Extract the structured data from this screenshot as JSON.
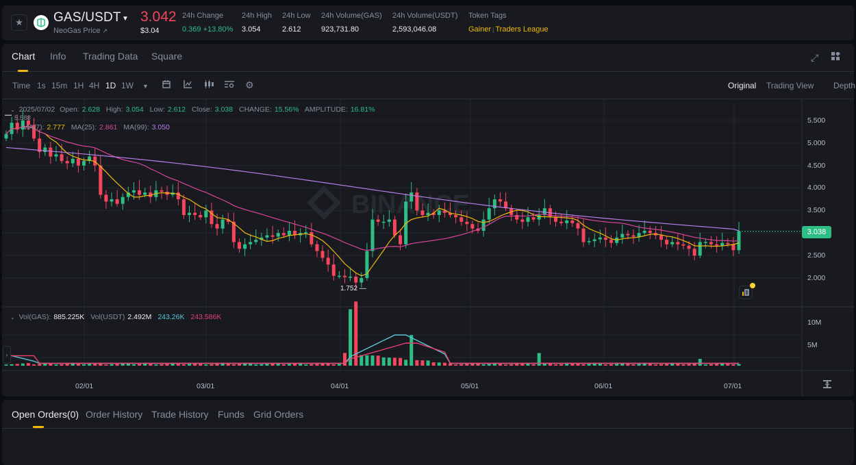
{
  "header": {
    "pair": "GAS/USDT",
    "token_name": "NeoGas Price",
    "token_link_icon": "external-link-icon",
    "last_price": "3.042",
    "last_price_usd": "$3.04",
    "stats": [
      {
        "label": "24h Change",
        "value": "0.369 +13.80%",
        "color": "#2ebd85"
      },
      {
        "label": "24h High",
        "value": "3.054"
      },
      {
        "label": "24h Low",
        "value": "2.612"
      },
      {
        "label": "24h Volume(GAS)",
        "value": "923,731.80"
      },
      {
        "label": "24h Volume(USDT)",
        "value": "2,593,046.08"
      }
    ],
    "token_tags_label": "Token Tags",
    "token_tags": [
      "Gainer",
      "Traders League"
    ]
  },
  "chart_tabs": {
    "items": [
      "Chart",
      "Info",
      "Trading Data",
      "Square"
    ],
    "active": "Chart"
  },
  "toolbar": {
    "intervals": [
      "Time",
      "1s",
      "15m",
      "1H",
      "4H",
      "1D",
      "1W"
    ],
    "active_interval": "1D",
    "icons": [
      "calendar-icon",
      "indicator-icon",
      "candle-type-icon",
      "layout-settings-icon",
      "gear-icon"
    ],
    "views": [
      "Original",
      "Trading View",
      "Depth"
    ],
    "active_view": "Original"
  },
  "ohlc_legend": {
    "date": "2025/07/02",
    "open_label": "Open:",
    "open": "2.628",
    "high_label": "High:",
    "high": "3.054",
    "low_label": "Low:",
    "low": "2.612",
    "close_label": "Close:",
    "close": "3.038",
    "change_label": "CHANGE:",
    "change": "15.56%",
    "amplitude_label": "AMPLITUDE:",
    "amplitude": "16.81%"
  },
  "ma_legend": {
    "ma7_label": "MA(7):",
    "ma7": "2.777",
    "ma25_label": "MA(25):",
    "ma25": "2.861",
    "ma99_label": "MA(99):",
    "ma99": "3.050"
  },
  "vol_legend": {
    "gas_label": "Vol(GAS):",
    "gas": "885.225K",
    "usdt_label": "Vol(USDT)",
    "usdt": "2.492M",
    "ma1": "243.26K",
    "ma2": "243.586K"
  },
  "current_price_tag": "3.038",
  "max_label": "5.588",
  "min_label": "1.752",
  "watermark": "BINANCE",
  "colors": {
    "up": "#2ebd85",
    "down": "#f6465d",
    "ma7": "#f0b90b",
    "ma25": "#d9449b",
    "ma99": "#b77ee8",
    "vol_ma1": "#5bc5d9",
    "vol_ma2": "#e83f6f",
    "accent": "#f0b90b"
  },
  "chart_data": {
    "type": "candlestick",
    "title": "GAS/USDT 1D",
    "y_ticks": [
      "5.500",
      "5.000",
      "4.500",
      "4.000",
      "3.500",
      "2.500",
      "2.000"
    ],
    "y_tick_values": [
      5.5,
      5.0,
      4.5,
      4.0,
      3.5,
      2.5,
      2.0
    ],
    "x_ticks": [
      "02/01",
      "03/01",
      "04/01",
      "05/01",
      "06/01",
      "07/01"
    ],
    "vol_ticks": [
      "10M",
      "5M"
    ],
    "ylim": [
      1.5,
      5.75
    ],
    "close_path": [
      5.2,
      5.45,
      5.3,
      5.5,
      5.4,
      5.1,
      4.8,
      4.9,
      4.7,
      4.75,
      4.6,
      4.55,
      4.65,
      4.5,
      4.6,
      4.7,
      4.5,
      3.85,
      3.7,
      3.75,
      3.65,
      3.8,
      3.9,
      3.95,
      3.85,
      3.9,
      3.8,
      3.95,
      3.92,
      3.85,
      3.9,
      3.75,
      3.4,
      3.45,
      3.4,
      3.35,
      3.5,
      3.2,
      3.1,
      3.3,
      3.25,
      2.8,
      2.65,
      2.75,
      2.8,
      2.85,
      2.9,
      2.95,
      2.92,
      3.0,
      2.95,
      3.05,
      2.95,
      3.0,
      3.02,
      2.75,
      2.6,
      2.45,
      2.3,
      2.05,
      2.05,
      2.02,
      2.03,
      1.9,
      2.0,
      2.6,
      3.3,
      3.25,
      3.25,
      3.3,
      2.95,
      2.75,
      3.7,
      3.9,
      3.5,
      3.4,
      3.45,
      3.4,
      3.5,
      3.45,
      3.4,
      3.35,
      3.25,
      3.2,
      3.1,
      3.05,
      3.3,
      3.55,
      3.75,
      3.7,
      3.55,
      3.4,
      3.3,
      3.25,
      3.35,
      3.3,
      3.4,
      3.55,
      3.35,
      3.25,
      3.22,
      3.28,
      3.22,
      3.1,
      2.8,
      2.82,
      2.86,
      2.9,
      2.85,
      2.78,
      2.9,
      2.98,
      2.95,
      2.92,
      3.0,
      3.05,
      3.0,
      2.95,
      2.85,
      2.75,
      2.8,
      2.75,
      2.72,
      2.65,
      2.5,
      2.8,
      2.8,
      2.75,
      2.72,
      2.78,
      2.75,
      2.62,
      3.04
    ],
    "ma7_last": 2.777,
    "ma25_last": 2.861,
    "ma99_last": 3.05,
    "high_marker": 5.588,
    "low_marker": 1.752,
    "volume_spikes_M": [
      {
        "x_index": 62,
        "value": 12.5
      },
      {
        "x_index": 63,
        "value": 14.2
      },
      {
        "x_index": 73,
        "value": 6.8
      },
      {
        "x_index": 96,
        "value": 2.8
      },
      {
        "x_index": 125,
        "value": 1.5
      }
    ]
  },
  "orders_tabs": {
    "items": [
      "Open Orders(0)",
      "Order History",
      "Trade History",
      "Funds",
      "Grid Orders"
    ],
    "active": "Open Orders(0)"
  }
}
